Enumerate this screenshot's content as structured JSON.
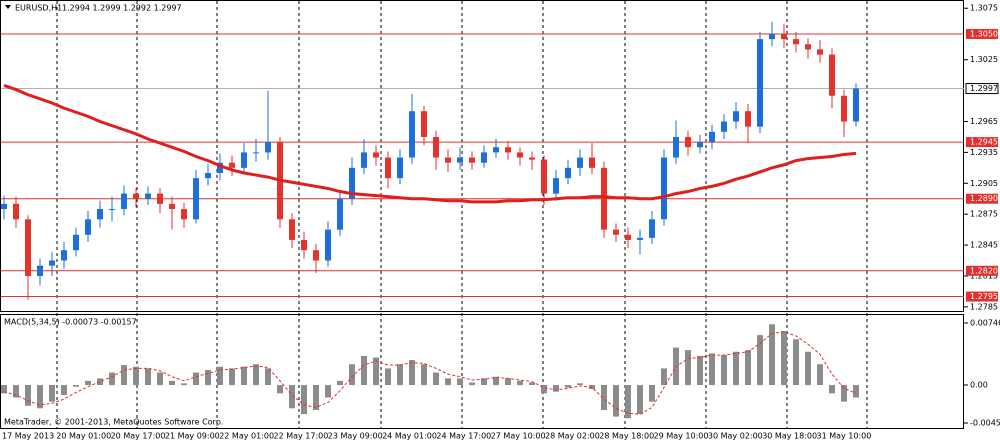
{
  "chart_data": [
    {
      "type": "candlestick",
      "title": "EURUSD,H1",
      "header_values": "1.2994 1.2999 1.2992 1.2997",
      "bull_color": "#1e6fd9",
      "bear_color": "#e0342c",
      "ma_color": "#e01e1e",
      "level_color": "#e03030",
      "ylim": [
        1.278,
        1.3083
      ],
      "yticks": [
        1.3075,
        1.3025,
        1.2965,
        1.2935,
        1.2905,
        1.2875,
        1.2845,
        1.2815,
        1.2785
      ],
      "levels": [
        {
          "value": 1.305,
          "label": "1.3050"
        },
        1.2945,
        {
          "value": 1.289,
          "label": "1.2890"
        },
        {
          "value": 1.282,
          "label": "1.2820"
        },
        1.2795
      ],
      "current_price": 1.2997,
      "time_labels": [
        "17 May 2013",
        "20 May 01:00",
        "20 May 17:00",
        "21 May 09:00",
        "22 May 01:00",
        "22 May 17:00",
        "23 May 09:00",
        "24 May 01:00",
        "24 May 17:00",
        "27 May 10:00",
        "28 May 02:00",
        "28 May 18:00",
        "29 May 10:00",
        "30 May 02:00",
        "30 May 18:00",
        "31 May 10:00"
      ],
      "ohlc": [
        [
          1.288,
          1.2893,
          1.287,
          1.2885
        ],
        [
          1.2885,
          1.2892,
          1.2862,
          1.287
        ],
        [
          1.287,
          1.2874,
          1.2792,
          1.2815
        ],
        [
          1.2815,
          1.2832,
          1.2806,
          1.2825
        ],
        [
          1.2825,
          1.2838,
          1.2815,
          1.283
        ],
        [
          1.283,
          1.2848,
          1.2822,
          1.284
        ],
        [
          1.284,
          1.2862,
          1.2834,
          1.2855
        ],
        [
          1.2855,
          1.2878,
          1.2848,
          1.287
        ],
        [
          1.287,
          1.2888,
          1.2862,
          1.288
        ],
        [
          1.288,
          1.2892,
          1.2868,
          1.288
        ],
        [
          1.288,
          1.2903,
          1.2874,
          1.2895
        ],
        [
          1.2895,
          1.29,
          1.2882,
          1.289
        ],
        [
          1.289,
          1.2902,
          1.2884,
          1.2895
        ],
        [
          1.2895,
          1.29,
          1.2876,
          1.2885
        ],
        [
          1.2885,
          1.2892,
          1.286,
          1.288
        ],
        [
          1.288,
          1.2886,
          1.2862,
          1.287
        ],
        [
          1.287,
          1.2918,
          1.2866,
          1.291
        ],
        [
          1.291,
          1.2924,
          1.2903,
          1.2915
        ],
        [
          1.2915,
          1.2934,
          1.2908,
          1.2925
        ],
        [
          1.2925,
          1.2932,
          1.2912,
          1.292
        ],
        [
          1.292,
          1.2944,
          1.2914,
          1.2935
        ],
        [
          1.2935,
          1.2948,
          1.2926,
          1.2935
        ],
        [
          1.2935,
          1.2995,
          1.2928,
          1.2945
        ],
        [
          1.2945,
          1.295,
          1.2862,
          1.287
        ],
        [
          1.287,
          1.2876,
          1.2842,
          1.285
        ],
        [
          1.285,
          1.2858,
          1.2832,
          1.284
        ],
        [
          1.284,
          1.2846,
          1.2818,
          1.283
        ],
        [
          1.283,
          1.2868,
          1.2824,
          1.286
        ],
        [
          1.286,
          1.2898,
          1.2854,
          1.289
        ],
        [
          1.289,
          1.293,
          1.2884,
          1.292
        ],
        [
          1.292,
          1.2948,
          1.2914,
          1.2935
        ],
        [
          1.2935,
          1.2942,
          1.2922,
          1.293
        ],
        [
          1.293,
          1.2936,
          1.29,
          1.291
        ],
        [
          1.291,
          1.2938,
          1.2904,
          1.293
        ],
        [
          1.293,
          1.2992,
          1.2924,
          1.2975
        ],
        [
          1.2975,
          1.298,
          1.2942,
          1.295
        ],
        [
          1.295,
          1.2956,
          1.2918,
          1.293
        ],
        [
          1.293,
          1.2938,
          1.2916,
          1.2925
        ],
        [
          1.2925,
          1.294,
          1.2918,
          1.293
        ],
        [
          1.293,
          1.2936,
          1.2918,
          1.2925
        ],
        [
          1.2925,
          1.2942,
          1.292,
          1.2935
        ],
        [
          1.2935,
          1.2948,
          1.293,
          1.294
        ],
        [
          1.294,
          1.2946,
          1.2928,
          1.2935
        ],
        [
          1.2935,
          1.294,
          1.2922,
          1.293
        ],
        [
          1.293,
          1.2936,
          1.2918,
          1.2928
        ],
        [
          1.2928,
          1.2932,
          1.2884,
          1.2895
        ],
        [
          1.2895,
          1.2918,
          1.2888,
          1.291
        ],
        [
          1.291,
          1.2928,
          1.2904,
          1.292
        ],
        [
          1.292,
          1.2938,
          1.2912,
          1.293
        ],
        [
          1.293,
          1.2944,
          1.2914,
          1.292
        ],
        [
          1.292,
          1.2926,
          1.2852,
          1.286
        ],
        [
          1.286,
          1.2866,
          1.2848,
          1.2855
        ],
        [
          1.2855,
          1.2862,
          1.2842,
          1.285
        ],
        [
          1.285,
          1.286,
          1.2836,
          1.2852
        ],
        [
          1.2852,
          1.2878,
          1.2846,
          1.287
        ],
        [
          1.287,
          1.2938,
          1.2864,
          1.293
        ],
        [
          1.293,
          1.2966,
          1.2924,
          1.295
        ],
        [
          1.295,
          1.2956,
          1.2932,
          1.294
        ],
        [
          1.294,
          1.2952,
          1.2934,
          1.2945
        ],
        [
          1.2945,
          1.2962,
          1.2938,
          1.2955
        ],
        [
          1.2955,
          1.2972,
          1.2948,
          1.2965
        ],
        [
          1.2965,
          1.2984,
          1.2958,
          1.2975
        ],
        [
          1.2975,
          1.2982,
          1.2944,
          1.296
        ],
        [
          1.296,
          1.3052,
          1.2954,
          1.3045
        ],
        [
          1.3045,
          1.3062,
          1.3038,
          1.305
        ],
        [
          1.305,
          1.306,
          1.3036,
          1.3045
        ],
        [
          1.3045,
          1.3052,
          1.3032,
          1.304
        ],
        [
          1.304,
          1.3046,
          1.3026,
          1.3035
        ],
        [
          1.3035,
          1.3044,
          1.3022,
          1.303
        ],
        [
          1.303,
          1.3036,
          1.2978,
          1.299
        ],
        [
          1.299,
          1.2996,
          1.295,
          1.2965
        ],
        [
          1.2965,
          1.3002,
          1.296,
          1.2997
        ]
      ],
      "moving_average": [
        1.3,
        1.2996,
        1.2991,
        1.2987,
        1.2983,
        1.2978,
        1.2974,
        1.297,
        1.2965,
        1.2961,
        1.2957,
        1.2953,
        1.2948,
        1.2944,
        1.294,
        1.2936,
        1.2931,
        1.2927,
        1.2922,
        1.2918,
        1.2915,
        1.2913,
        1.2911,
        1.2908,
        1.2906,
        1.2904,
        1.2902,
        1.29,
        1.2897,
        1.2895,
        1.2894,
        1.2893,
        1.2892,
        1.2891,
        1.289,
        1.289,
        1.2889,
        1.2888,
        1.2888,
        1.2887,
        1.2887,
        1.2887,
        1.2888,
        1.2888,
        1.2889,
        1.2889,
        1.289,
        1.2891,
        1.2891,
        1.2892,
        1.2892,
        1.2891,
        1.2891,
        1.289,
        1.289,
        1.2892,
        1.2895,
        1.2897,
        1.29,
        1.2902,
        1.2905,
        1.2909,
        1.2912,
        1.2916,
        1.292,
        1.2923,
        1.2927,
        1.2929,
        1.293,
        1.2931,
        1.2933,
        1.2934
      ]
    },
    {
      "type": "macd",
      "title": "MACD(5,34,5) -0.00073 -0.00157",
      "hist_color": "#8c8c8c",
      "signal_color": "#e03030",
      "ylim": [
        -0.00517,
        0.00854
      ],
      "yticks": [
        0.00746,
        {
          "value": 0,
          "label": "0.00"
        },
        -0.00457
      ],
      "footer": "MetaTrader, © 2001-2013, MetaQuotes Software Corp.",
      "histogram": [
        -0.001,
        -0.0015,
        -0.0025,
        -0.0028,
        -0.002,
        -0.0012,
        -0.0002,
        0.0005,
        0.0008,
        0.0015,
        0.0024,
        0.0022,
        0.002,
        0.0015,
        0.0005,
        0.0002,
        0.0015,
        0.0018,
        0.0022,
        0.002,
        0.0022,
        0.0025,
        0.002,
        -0.001,
        -0.0028,
        -0.0035,
        -0.003,
        -0.0015,
        0.0005,
        0.0025,
        0.0035,
        0.0033,
        0.002,
        0.0025,
        0.003,
        0.0025,
        0.0015,
        0.0008,
        0.0008,
        0.0003,
        0.0008,
        0.001,
        0.0008,
        0.0005,
        0.0003,
        -0.001,
        -0.0008,
        -0.0003,
        0.0002,
        -0.0005,
        -0.003,
        -0.0038,
        -0.004,
        -0.0035,
        -0.002,
        0.002,
        0.0045,
        0.0042,
        0.0035,
        0.0038,
        0.0036,
        0.004,
        0.0042,
        0.006,
        0.0073,
        0.0065,
        0.0055,
        0.004,
        0.0025,
        -0.001,
        -0.002,
        -0.0015
      ],
      "signal": [
        -0.0008,
        -0.0012,
        -0.0019,
        -0.0024,
        -0.0022,
        -0.0017,
        -0.0009,
        -0.0002,
        0.0004,
        0.001,
        0.0018,
        0.002,
        0.002,
        0.0017,
        0.001,
        0.0005,
        0.001,
        0.0014,
        0.0018,
        0.0019,
        0.0021,
        0.0023,
        0.0021,
        0.0005,
        -0.0012,
        -0.0024,
        -0.0027,
        -0.0021,
        -0.0007,
        0.001,
        0.0024,
        0.0029,
        0.0024,
        0.0024,
        0.0027,
        0.0026,
        0.002,
        0.0013,
        0.001,
        0.0006,
        0.0007,
        0.0009,
        0.0008,
        0.0006,
        0.0004,
        -0.0003,
        -0.0006,
        -0.0004,
        -0.0001,
        -0.0003,
        -0.0017,
        -0.0028,
        -0.0034,
        -0.0035,
        -0.0027,
        -0.0003,
        0.0022,
        0.0032,
        0.0033,
        0.0036,
        0.0036,
        0.0038,
        0.004,
        0.005,
        0.0062,
        0.0064,
        0.0059,
        0.0049,
        0.0037,
        0.0013,
        -0.0004,
        -0.001
      ]
    }
  ]
}
